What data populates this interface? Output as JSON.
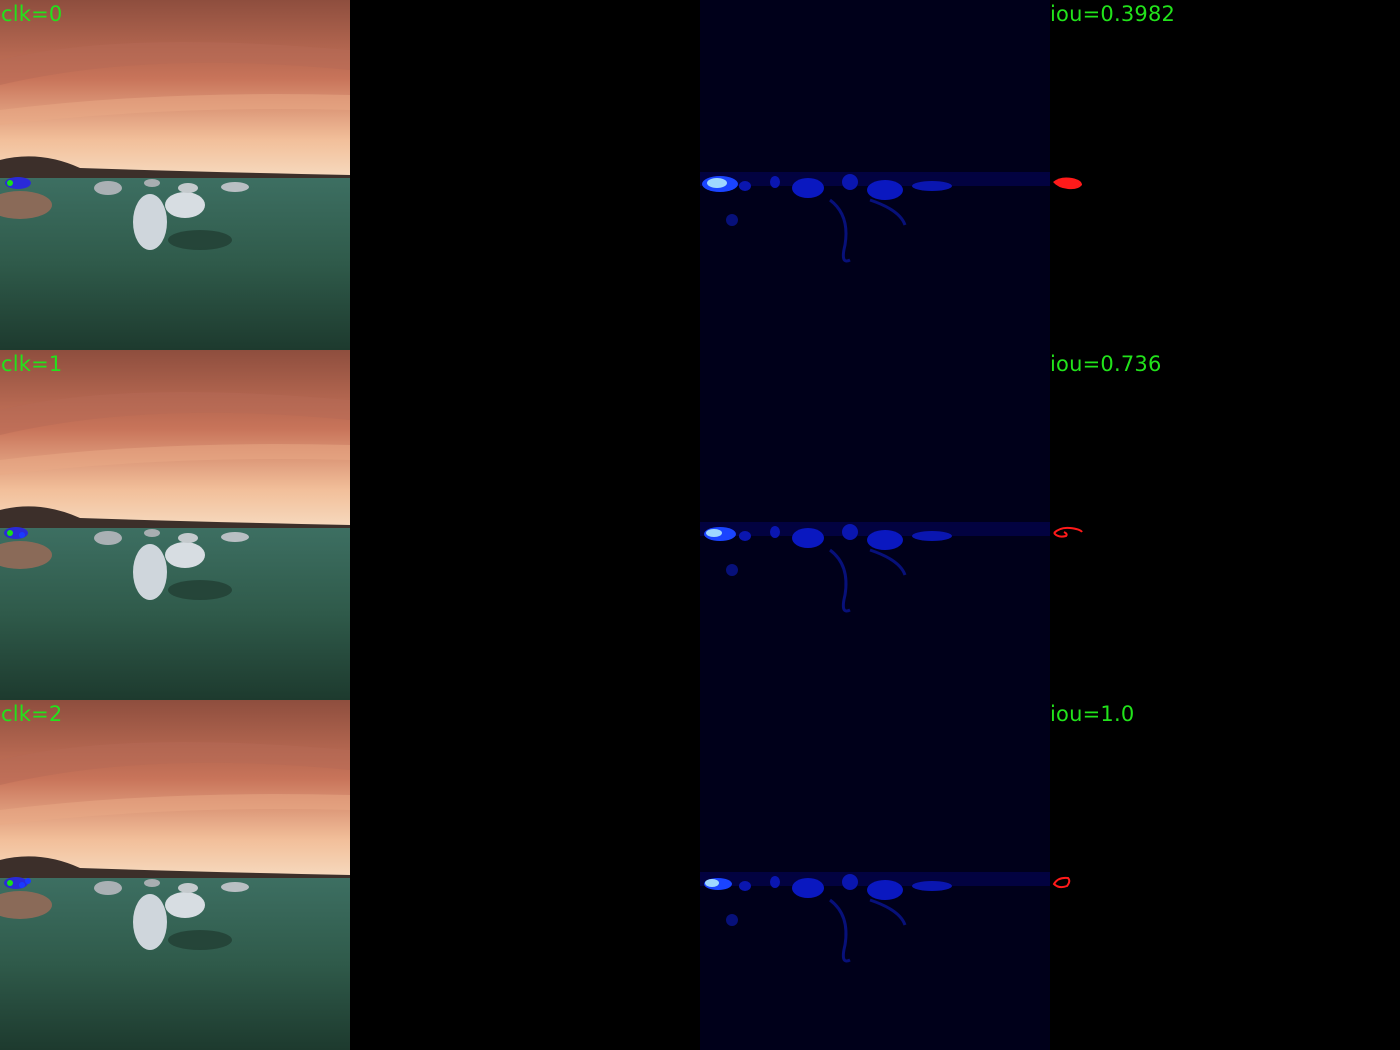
{
  "colors": {
    "label_text": "#22e31b",
    "mask": "#ffffff",
    "prediction": "#ff1a1a",
    "click_positive": "#19e019",
    "click_region": "#2a2ad8",
    "heatmap_low": "#00001a",
    "heatmap_high": "#b5e8ff",
    "sky_top": "#9a5a48",
    "sky_bottom": "#f4c8a8",
    "grass": "#3f7a66"
  },
  "panels": {
    "columns": [
      "image-with-clicks",
      "ground-truth-mask",
      "probability-heatmap",
      "prediction-outline"
    ]
  },
  "rows": [
    {
      "clk_label": "clk=0",
      "iou_label": "iou=0.3982",
      "prediction_style": "filled"
    },
    {
      "clk_label": "clk=1",
      "iou_label": "iou=0.736",
      "prediction_style": "outline"
    },
    {
      "clk_label": "clk=2",
      "iou_label": "iou=1.0",
      "prediction_style": "outline"
    }
  ]
}
